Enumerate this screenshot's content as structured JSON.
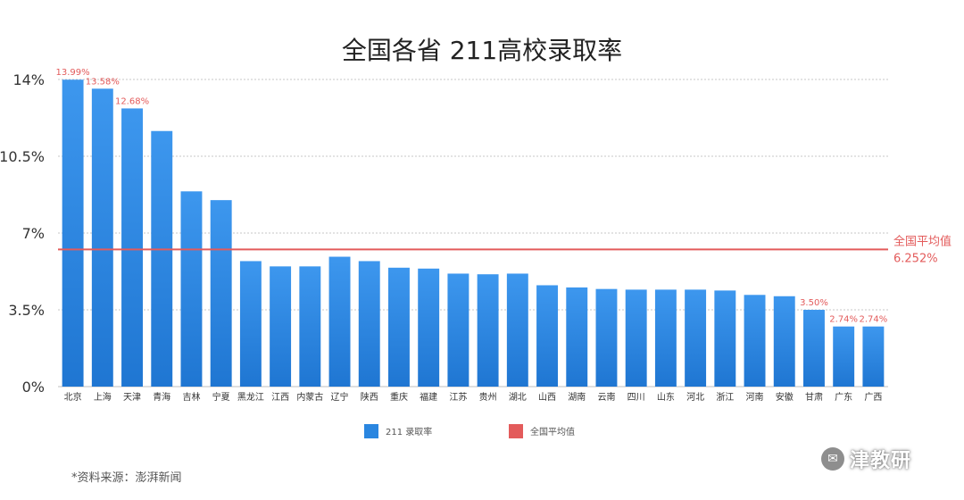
{
  "chart_data": {
    "type": "bar",
    "title": "全国各省 211高校录取率",
    "categories": [
      "北京",
      "上海",
      "天津",
      "青海",
      "吉林",
      "宁夏",
      "黑龙江",
      "江西",
      "内蒙古",
      "辽宁",
      "陕西",
      "重庆",
      "福建",
      "江苏",
      "贵州",
      "湖北",
      "山西",
      "湖南",
      "云南",
      "四川",
      "山东",
      "河北",
      "浙江",
      "河南",
      "安徽",
      "甘肃",
      "广东",
      "广西"
    ],
    "series": [
      {
        "name": "211 录取率",
        "color": "#2a86e0",
        "values": [
          13.99,
          13.58,
          12.68,
          11.65,
          8.9,
          8.5,
          5.72,
          5.48,
          5.48,
          5.92,
          5.72,
          5.42,
          5.38,
          5.15,
          5.12,
          5.15,
          4.62,
          4.52,
          4.45,
          4.42,
          4.42,
          4.42,
          4.38,
          4.18,
          4.12,
          3.5,
          2.74,
          2.74
        ]
      }
    ],
    "data_labels": [
      {
        "index": 0,
        "text": "13.99%"
      },
      {
        "index": 1,
        "text": "13.58%"
      },
      {
        "index": 2,
        "text": "12.68%"
      },
      {
        "index": 25,
        "text": "3.50%"
      },
      {
        "index": 26,
        "text": "2.74%"
      },
      {
        "index": 27,
        "text": "2.74%"
      }
    ],
    "reference_line": {
      "name": "全国平均值",
      "value": 6.252,
      "label": "全国平均值",
      "value_label": "6.252%",
      "color": "#e35b5b"
    },
    "yticks": [
      {
        "value": 0,
        "label": "0%"
      },
      {
        "value": 3.5,
        "label": "3.5%"
      },
      {
        "value": 7,
        "label": "7%"
      },
      {
        "value": 10.5,
        "label": "10.5%"
      },
      {
        "value": 14,
        "label": "14%"
      }
    ],
    "ylim": [
      0,
      14
    ],
    "grid": true,
    "legend_position": "bottom-center",
    "legend": [
      {
        "label": "211 录取率",
        "color": "#2a86e0"
      },
      {
        "label": "全国平均值",
        "color": "#e35b5b"
      }
    ]
  },
  "source_note": "*资料来源：澎湃新闻",
  "watermark": {
    "text": "津教研",
    "icon": "wechat-icon"
  }
}
